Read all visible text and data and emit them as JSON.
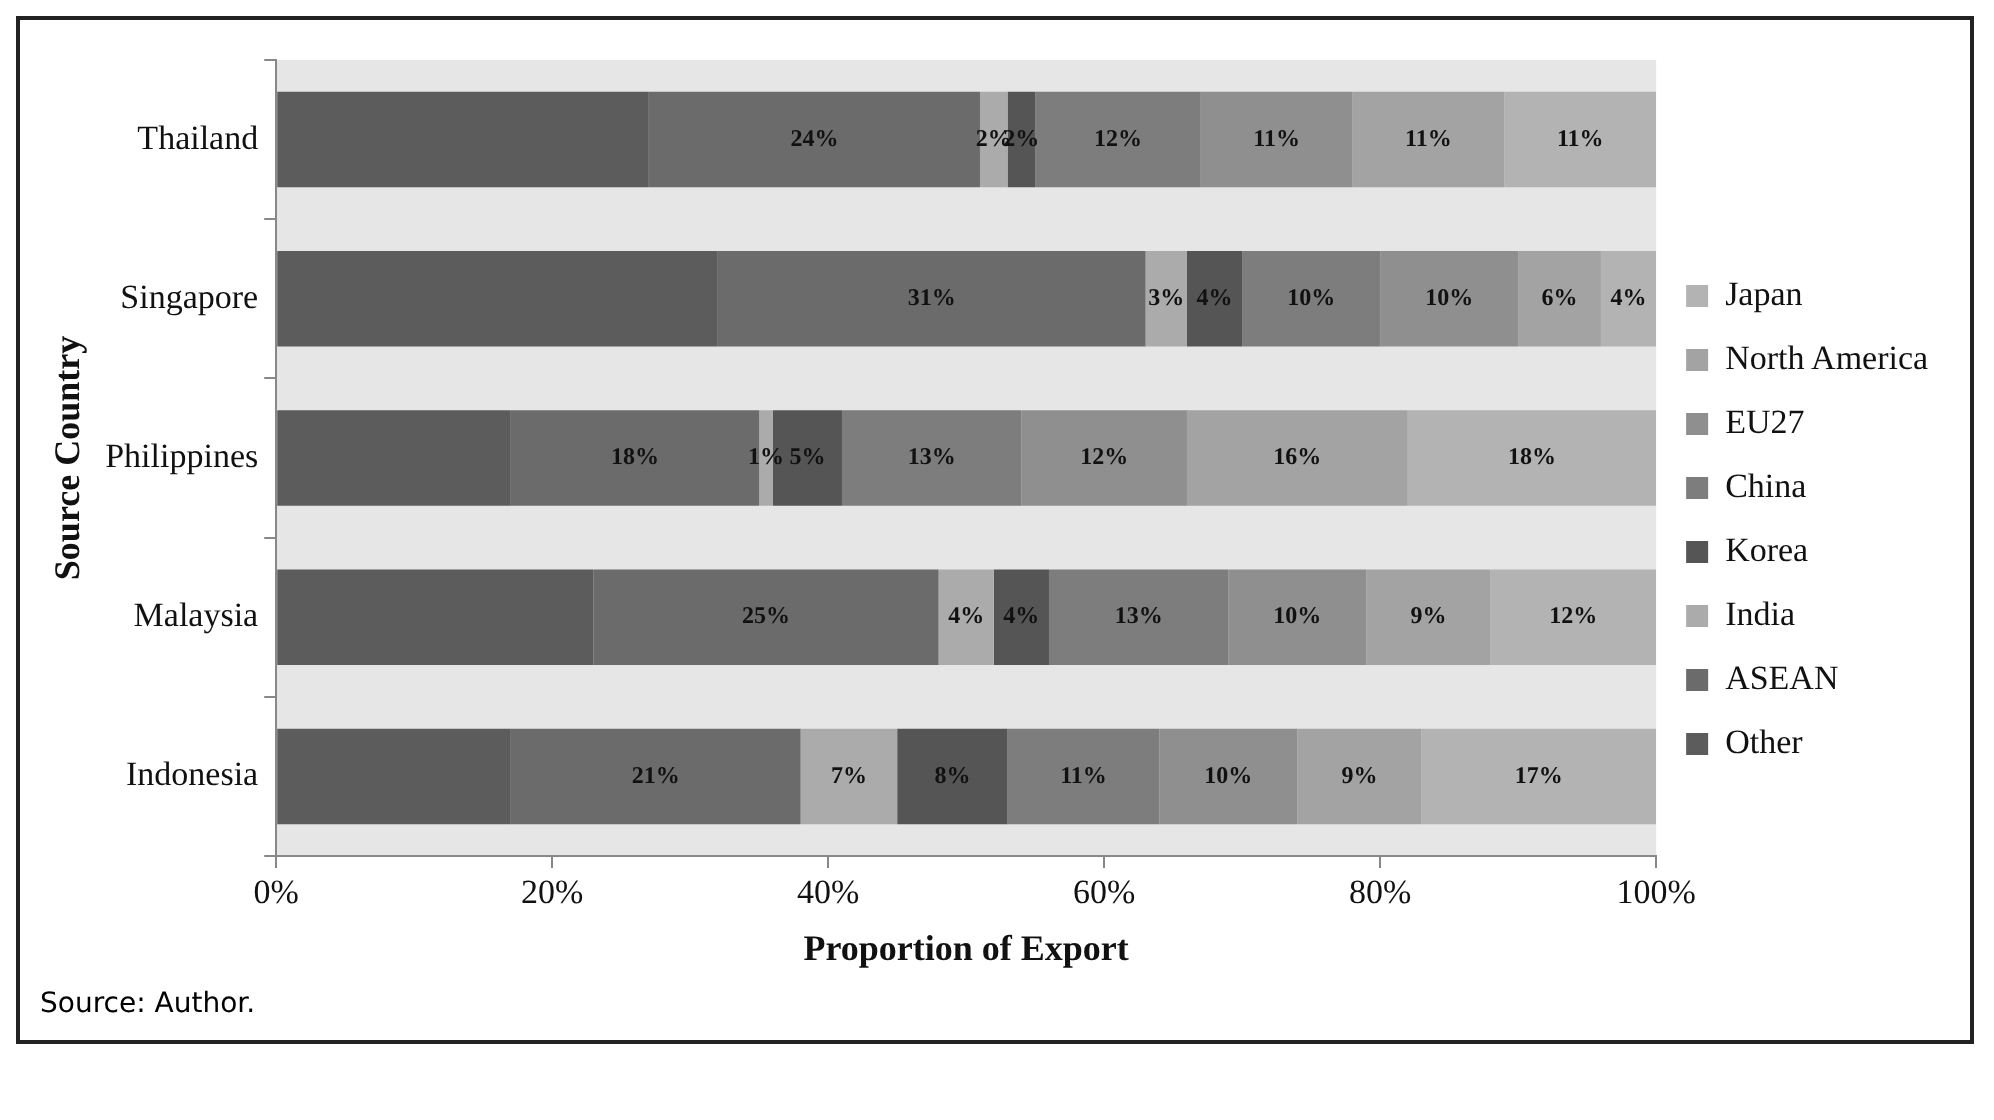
{
  "chart_data": {
    "type": "bar",
    "orientation": "horizontal",
    "stacked": true,
    "xlabel": "Proportion of Export",
    "ylabel": "Source Country",
    "categories": [
      "Thailand",
      "Singapore",
      "Philippines",
      "Malaysia",
      "Indonesia"
    ],
    "series": [
      {
        "name": "Other",
        "color": "#5c5c5c",
        "values": [
          27,
          32,
          17,
          23,
          17
        ]
      },
      {
        "name": "ASEAN",
        "color": "#6b6b6b",
        "values": [
          24,
          31,
          18,
          25,
          21
        ],
        "value_labels": [
          "24%",
          "31%",
          "18%",
          "25%",
          "21%"
        ]
      },
      {
        "name": "India",
        "color": "#ababab",
        "values": [
          2,
          3,
          1,
          4,
          7
        ],
        "value_labels": [
          "2%",
          "3%",
          "1%",
          "4%",
          "7%"
        ]
      },
      {
        "name": "Korea",
        "color": "#555555",
        "values": [
          2,
          4,
          5,
          4,
          8
        ],
        "value_labels": [
          "2%",
          "4%",
          "5%",
          "4%",
          "8%"
        ]
      },
      {
        "name": "China",
        "color": "#7d7d7d",
        "values": [
          12,
          10,
          13,
          13,
          11
        ],
        "value_labels": [
          "12%",
          "10%",
          "13%",
          "13%",
          "11%"
        ]
      },
      {
        "name": "EU27",
        "color": "#8f8f8f",
        "values": [
          11,
          10,
          12,
          10,
          10
        ],
        "value_labels": [
          "11%",
          "10%",
          "12%",
          "10%",
          "10%"
        ]
      },
      {
        "name": "North America",
        "color": "#a3a3a3",
        "values": [
          11,
          6,
          16,
          9,
          9
        ],
        "value_labels": [
          "11%",
          "6%",
          "16%",
          "9%",
          "9%"
        ]
      },
      {
        "name": "Japan",
        "color": "#b3b3b3",
        "values": [
          11,
          4,
          18,
          12,
          17
        ],
        "value_labels": [
          "11%",
          "4%",
          "18%",
          "12%",
          "17%"
        ]
      }
    ],
    "xlim": [
      0,
      100
    ],
    "xticks": [
      {
        "value": 0,
        "label": "0%"
      },
      {
        "value": 20,
        "label": "20%"
      },
      {
        "value": 40,
        "label": "40%"
      },
      {
        "value": 60,
        "label": "60%"
      },
      {
        "value": 80,
        "label": "80%"
      },
      {
        "value": 100,
        "label": "100%"
      }
    ],
    "grid": false,
    "legend": "right",
    "annotations": [
      "Source: Author."
    ]
  }
}
